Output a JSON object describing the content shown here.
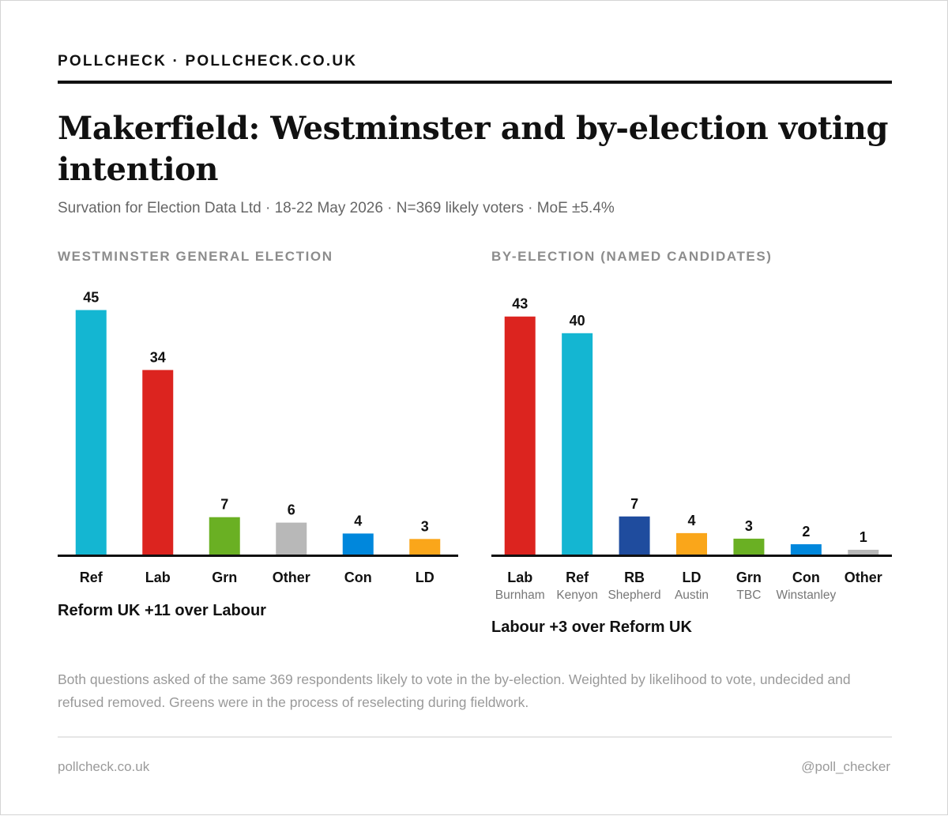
{
  "header": {
    "brand": "POLLCHECK · POLLCHECK.CO.UK",
    "title": "Makerfield: Westminster and by-election voting intention",
    "subtitle": "Survation for Election Data Ltd · 18-22 May 2026 · N=369 likely voters · MoE ±5.4%"
  },
  "chart_data": [
    {
      "type": "bar",
      "title": "WESTMINSTER GENERAL ELECTION",
      "categories": [
        "Ref",
        "Lab",
        "Grn",
        "Other",
        "Con",
        "LD"
      ],
      "values": [
        45,
        34,
        7,
        6,
        4,
        3
      ],
      "colors": [
        "#14b6d2",
        "#dc241f",
        "#6ab023",
        "#b8b8b8",
        "#0087dc",
        "#faa61a"
      ],
      "ylim": [
        0,
        45
      ],
      "grid": false,
      "summary": "Reform UK +11 over Labour"
    },
    {
      "type": "bar",
      "title": "BY-ELECTION (NAMED CANDIDATES)",
      "categories": [
        "Lab",
        "Ref",
        "RB",
        "LD",
        "Grn",
        "Con",
        "Other"
      ],
      "candidates": [
        "Burnham",
        "Kenyon",
        "Shepherd",
        "Austin",
        "TBC",
        "Winstanley",
        ""
      ],
      "values": [
        43,
        40,
        7,
        4,
        3,
        2,
        1
      ],
      "colors": [
        "#dc241f",
        "#14b6d2",
        "#1f4c9e",
        "#faa61a",
        "#6ab023",
        "#0087dc",
        "#b8b8b8"
      ],
      "ylim": [
        0,
        45
      ],
      "grid": false,
      "summary": "Labour +3 over Reform UK"
    }
  ],
  "note": "Both questions asked of the same 369 respondents likely to vote in the by-election. Weighted by likelihood to vote, undecided and refused removed. Greens were in the process of reselecting during fieldwork.",
  "footer": {
    "website": "pollcheck.co.uk",
    "handle": "@poll_checker"
  }
}
